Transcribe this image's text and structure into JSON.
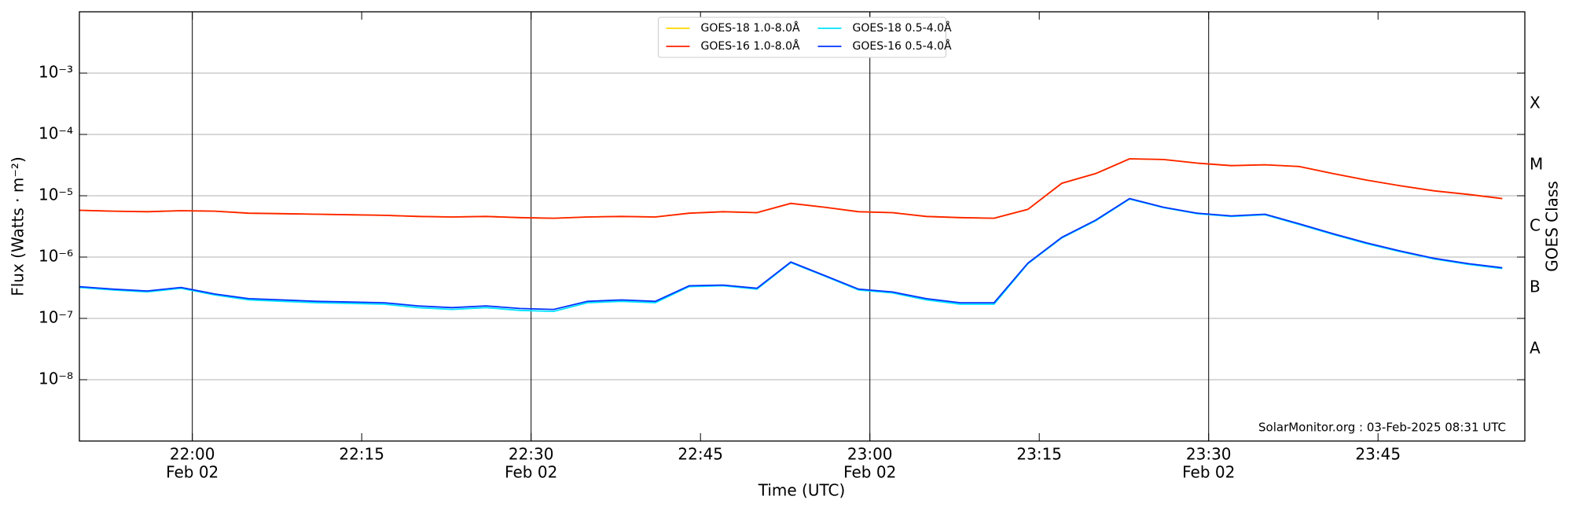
{
  "chart_data": {
    "type": "line",
    "xlabel": "Time (UTC)",
    "ylabel": "Flux (Watts · m⁻²)",
    "y2label": "GOES Class",
    "annotation": "SolarMonitor.org : 03-Feb-2025 08:31 UTC",
    "log_y": true,
    "grid": true,
    "legend": "upper center",
    "xlim": [
      "Feb 02 21:50",
      "Feb 02 23:58"
    ],
    "xticks": [
      {
        "value": "Feb 02 22:00",
        "label": [
          "22:00",
          "Feb 02"
        ]
      },
      {
        "value": "Feb 02 22:15",
        "label": [
          "22:15"
        ]
      },
      {
        "value": "Feb 02 22:30",
        "label": [
          "22:30",
          "Feb 02"
        ]
      },
      {
        "value": "Feb 02 22:45",
        "label": [
          "22:45"
        ]
      },
      {
        "value": "Feb 02 23:00",
        "label": [
          "23:00",
          "Feb 02"
        ]
      },
      {
        "value": "Feb 02 23:15",
        "label": [
          "23:15"
        ]
      },
      {
        "value": "Feb 02 23:30",
        "label": [
          "23:30",
          "Feb 02"
        ]
      },
      {
        "value": "Feb 02 23:45",
        "label": [
          "23:45"
        ]
      }
    ],
    "ylim": [
      1e-09,
      0.01
    ],
    "yticks": [
      {
        "value": 1e-08,
        "label": "10⁻⁸"
      },
      {
        "value": 1e-07,
        "label": "10⁻⁷"
      },
      {
        "value": 1e-06,
        "label": "10⁻⁶"
      },
      {
        "value": 1e-05,
        "label": "10⁻⁵"
      },
      {
        "value": 0.0001,
        "label": "10⁻⁴"
      },
      {
        "value": 0.001,
        "label": "10⁻³"
      }
    ],
    "y2lim": [
      1e-09,
      0.01
    ],
    "y2ticks": [
      {
        "value": 1e-08,
        "label": "A"
      },
      {
        "value": 1e-07,
        "label": "B"
      },
      {
        "value": 1e-06,
        "label": "C"
      },
      {
        "value": 1e-05,
        "label": "M"
      },
      {
        "value": 0.0001,
        "label": "X"
      }
    ],
    "x": [
      "Feb 02 21:50",
      "Feb 02 21:53",
      "Feb 02 21:56",
      "Feb 02 21:59",
      "Feb 02 22:02",
      "Feb 02 22:05",
      "Feb 02 22:08",
      "Feb 02 22:11",
      "Feb 02 22:14",
      "Feb 02 22:17",
      "Feb 02 22:20",
      "Feb 02 22:23",
      "Feb 02 22:26",
      "Feb 02 22:29",
      "Feb 02 22:32",
      "Feb 02 22:35",
      "Feb 02 22:38",
      "Feb 02 22:41",
      "Feb 02 22:44",
      "Feb 02 22:47",
      "Feb 02 22:50",
      "Feb 02 22:53",
      "Feb 02 22:56",
      "Feb 02 22:59",
      "Feb 02 23:02",
      "Feb 02 23:05",
      "Feb 02 23:08",
      "Feb 02 23:11",
      "Feb 02 23:14",
      "Feb 02 23:17",
      "Feb 02 23:20",
      "Feb 02 23:23",
      "Feb 02 23:26",
      "Feb 02 23:29",
      "Feb 02 23:32",
      "Feb 02 23:35",
      "Feb 02 23:38",
      "Feb 02 23:41",
      "Feb 02 23:44",
      "Feb 02 23:47",
      "Feb 02 23:50",
      "Feb 02 23:53",
      "Feb 02 23:56"
    ],
    "series": [
      {
        "name": "GOES-18 1.0-8.0Å",
        "color": "#ffd700",
        "values": [
          5.8e-06,
          5.6e-06,
          5.5e-06,
          5.7e-06,
          5.6e-06,
          5.2e-06,
          5.1e-06,
          5e-06,
          4.9e-06,
          4.8e-06,
          4.6e-06,
          4.5e-06,
          4.6e-06,
          4.4e-06,
          4.3e-06,
          4.5e-06,
          4.6e-06,
          4.5e-06,
          5.2e-06,
          5.5e-06,
          5.3e-06,
          7.5e-06,
          6.5e-06,
          5.5e-06,
          5.3e-06,
          4.6e-06,
          4.4e-06,
          4.3e-06,
          6e-06,
          1.6e-05,
          2.3e-05,
          4e-05,
          3.9e-05,
          3.4e-05,
          3.1e-05,
          3.2e-05,
          3e-05,
          2.3e-05,
          1.8e-05,
          1.45e-05,
          1.2e-05,
          1.05e-05,
          9e-06
        ]
      },
      {
        "name": "GOES-16 1.0-8.0Å",
        "color": "#ff2000",
        "values": [
          5.8e-06,
          5.6e-06,
          5.5e-06,
          5.7e-06,
          5.6e-06,
          5.2e-06,
          5.1e-06,
          5e-06,
          4.9e-06,
          4.8e-06,
          4.6e-06,
          4.5e-06,
          4.6e-06,
          4.4e-06,
          4.3e-06,
          4.5e-06,
          4.6e-06,
          4.5e-06,
          5.2e-06,
          5.5e-06,
          5.3e-06,
          7.5e-06,
          6.5e-06,
          5.5e-06,
          5.3e-06,
          4.6e-06,
          4.4e-06,
          4.3e-06,
          6e-06,
          1.6e-05,
          2.3e-05,
          4e-05,
          3.9e-05,
          3.4e-05,
          3.1e-05,
          3.2e-05,
          3e-05,
          2.3e-05,
          1.8e-05,
          1.45e-05,
          1.2e-05,
          1.05e-05,
          9e-06
        ]
      },
      {
        "name": "GOES-18 0.5-4.0Å",
        "color": "#00e5ff",
        "values": [
          3.2e-07,
          2.9e-07,
          2.7e-07,
          3.1e-07,
          2.4e-07,
          2e-07,
          1.9e-07,
          1.8e-07,
          1.75e-07,
          1.7e-07,
          1.5e-07,
          1.4e-07,
          1.5e-07,
          1.35e-07,
          1.3e-07,
          1.8e-07,
          1.9e-07,
          1.8e-07,
          3.3e-07,
          3.4e-07,
          3e-07,
          8.1e-07,
          4.9e-07,
          2.9e-07,
          2.6e-07,
          2e-07,
          1.7e-07,
          1.7e-07,
          7.8e-07,
          2.05e-06,
          3.9e-06,
          8.8e-06,
          6.4e-06,
          5.1e-06,
          4.6e-06,
          4.9e-06,
          3.4e-06,
          2.35e-06,
          1.65e-06,
          1.22e-06,
          9.3e-07,
          7.6e-07,
          6.5e-07
        ]
      },
      {
        "name": "GOES-16 0.5-4.0Å",
        "color": "#0033ff",
        "values": [
          3.3e-07,
          3e-07,
          2.8e-07,
          3.2e-07,
          2.5e-07,
          2.1e-07,
          2e-07,
          1.9e-07,
          1.85e-07,
          1.8e-07,
          1.6e-07,
          1.5e-07,
          1.6e-07,
          1.45e-07,
          1.4e-07,
          1.9e-07,
          2e-07,
          1.9e-07,
          3.4e-07,
          3.5e-07,
          3.1e-07,
          8.3e-07,
          5e-07,
          3e-07,
          2.7e-07,
          2.1e-07,
          1.8e-07,
          1.8e-07,
          8e-07,
          2.1e-06,
          4e-06,
          9e-06,
          6.5e-06,
          5.2e-06,
          4.7e-06,
          5e-06,
          3.5e-06,
          2.4e-06,
          1.7e-06,
          1.25e-06,
          9.5e-07,
          7.8e-07,
          6.7e-07
        ]
      }
    ]
  }
}
